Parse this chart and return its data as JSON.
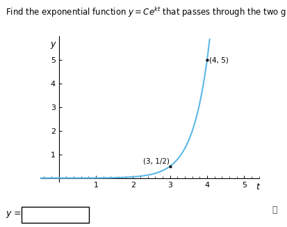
{
  "title_plain": "Find the exponential function ",
  "title_math": "$y = Ce^{kt}$",
  "title_end": " that passes through the two given points.",
  "xlabel": "$t$",
  "ylabel": "$y$",
  "xlim": [
    -0.5,
    5.4
  ],
  "ylim": [
    -0.15,
    6.0
  ],
  "xticks": [
    1,
    2,
    3,
    4,
    5
  ],
  "yticks": [
    1,
    2,
    3,
    4,
    5
  ],
  "curve_color": "#5bb8e8",
  "curve_lw": 1.5,
  "point1": [
    3,
    0.5
  ],
  "point2": [
    4,
    5
  ],
  "point1_label": "(3, 1/2)",
  "point2_label": "(4, 5)",
  "C": 0.0005,
  "k": 2.302585,
  "t_start": -0.5,
  "t_end": 4.07,
  "background_color": "#ffffff",
  "font_size_title": 8.5,
  "font_size_axis": 9,
  "font_size_ticks": 8,
  "font_size_labels": 7.5,
  "input_box_text": "$y$ =",
  "info_icon": "ⓘ"
}
